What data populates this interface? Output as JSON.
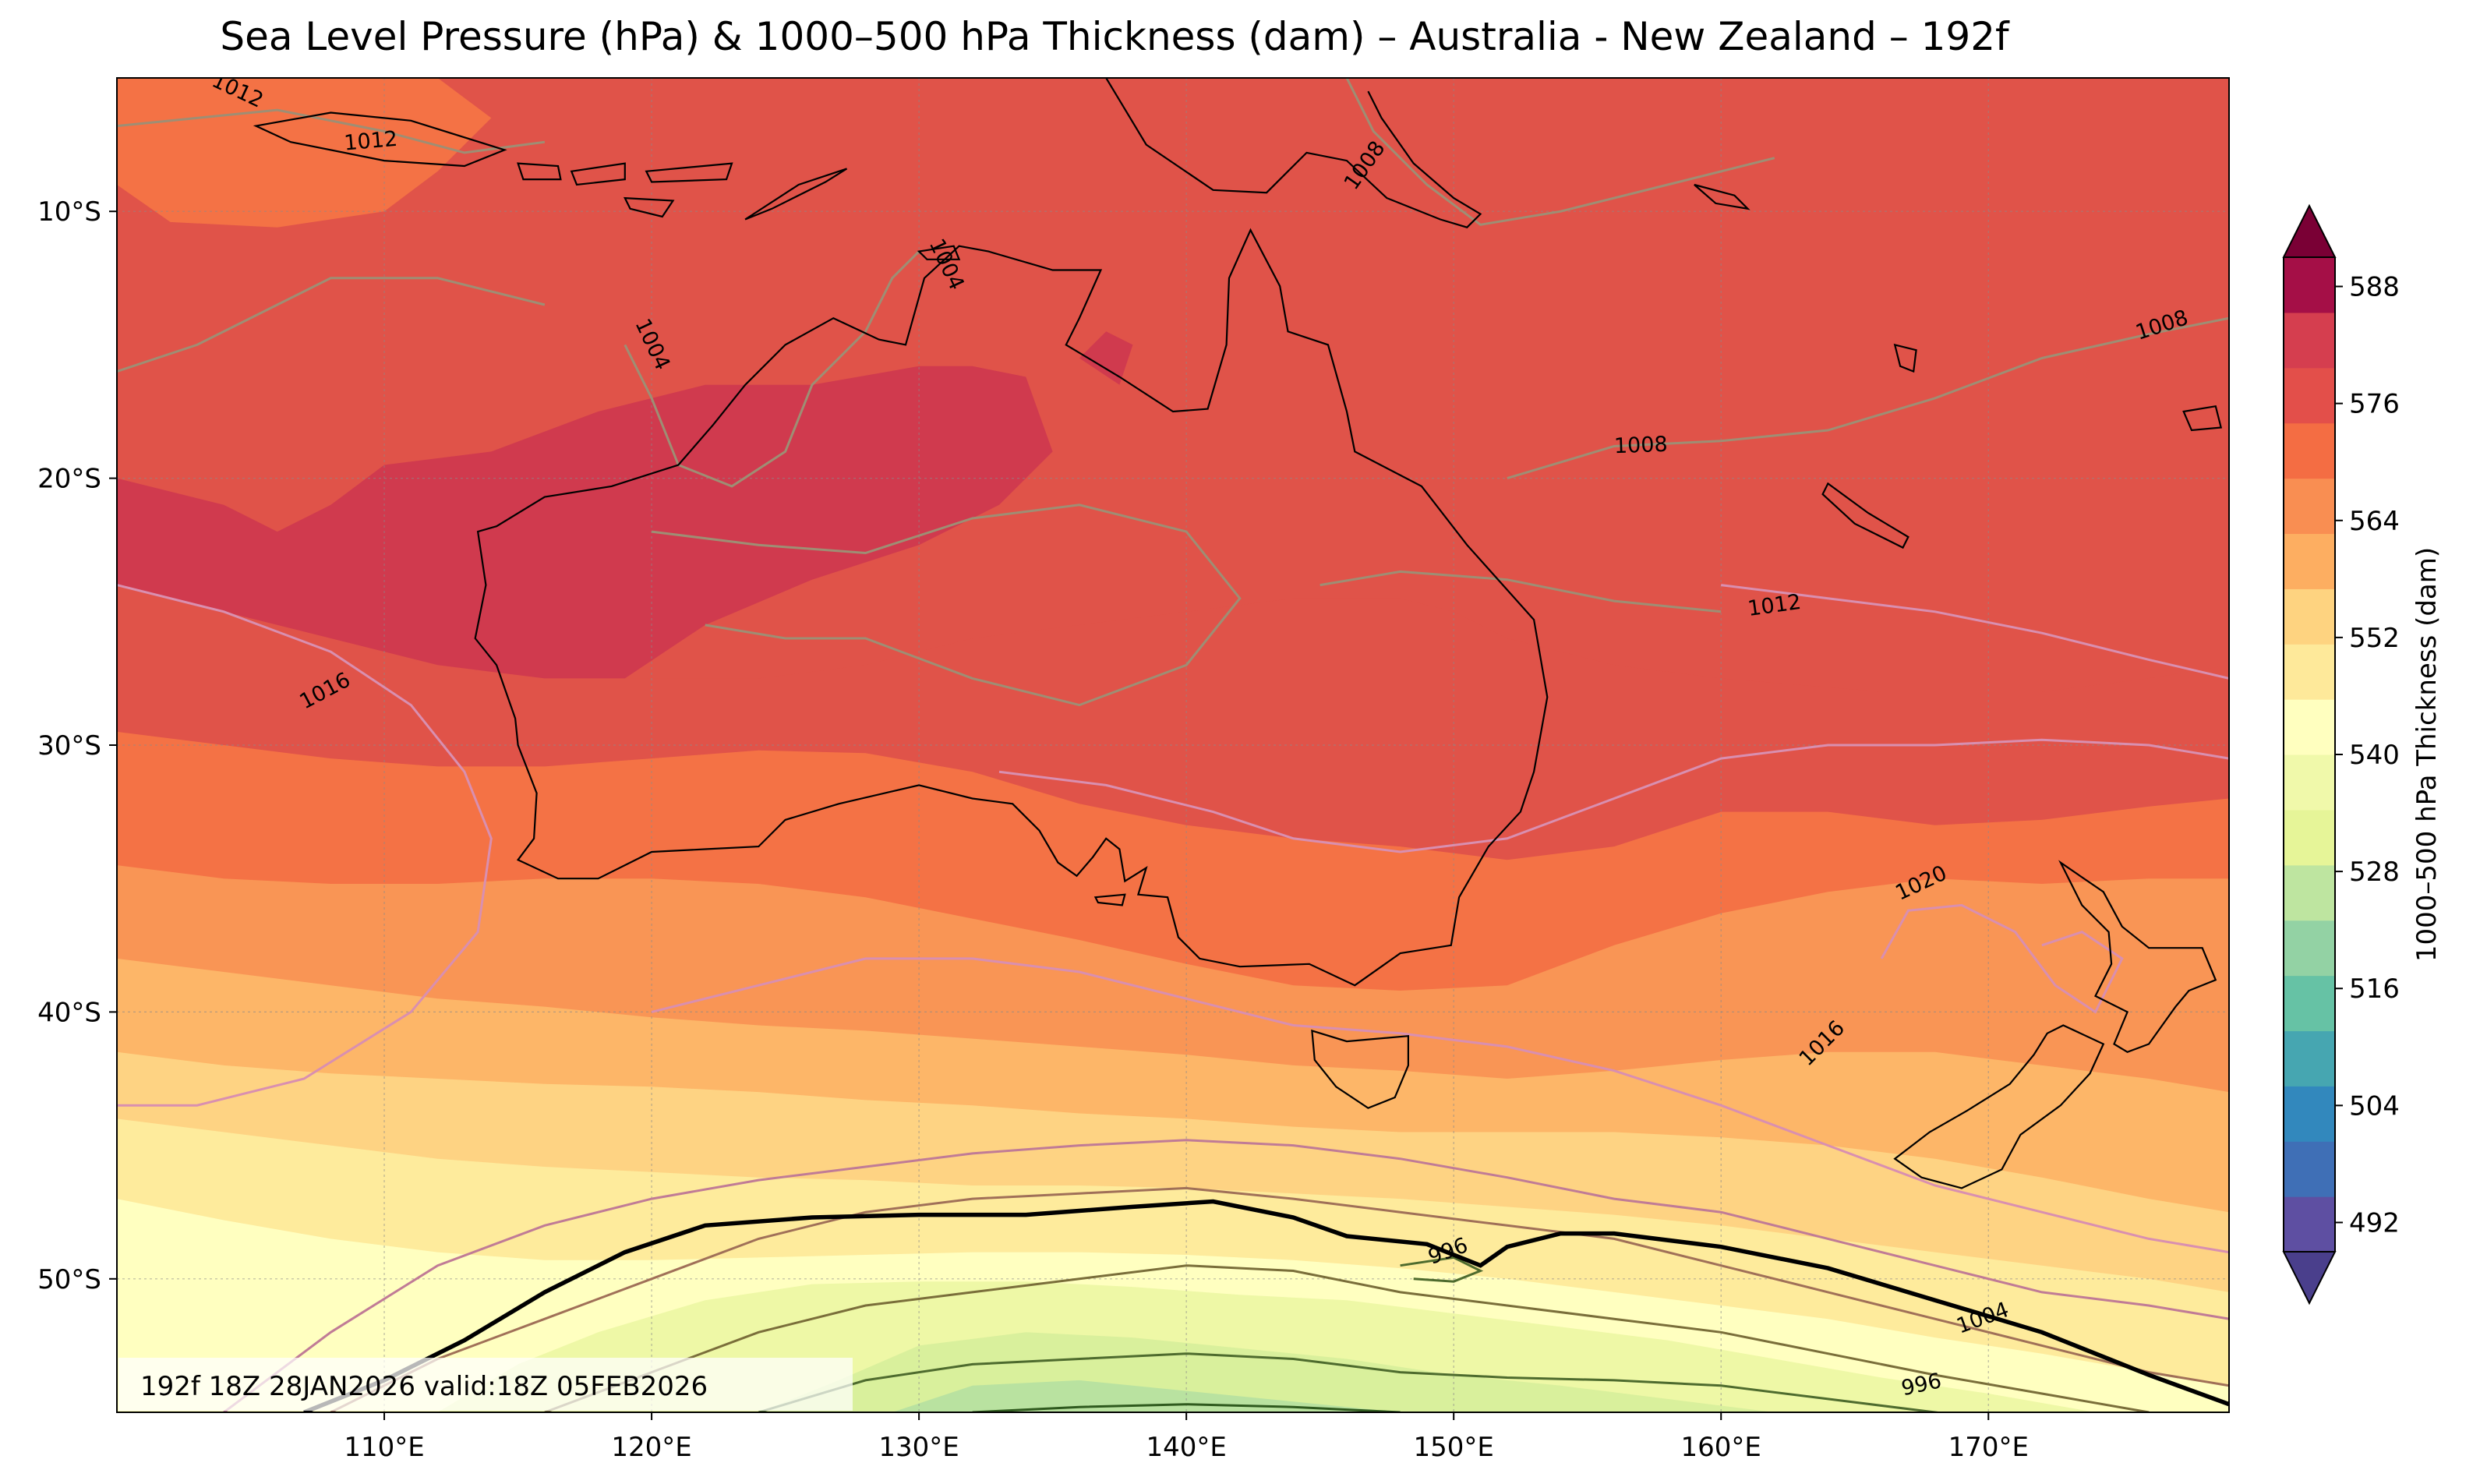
{
  "title": "Sea Level Pressure (hPa) & 1000–500 hPa Thickness (dam) – Australia - New Zealand – 192f",
  "map": {
    "lon_range": [
      100,
      179
    ],
    "lat_range": [
      -55,
      -5
    ],
    "lon_ticks": [
      {
        "value": 110,
        "label": "110°E"
      },
      {
        "value": 120,
        "label": "120°E"
      },
      {
        "value": 130,
        "label": "130°E"
      },
      {
        "value": 140,
        "label": "140°E"
      },
      {
        "value": 150,
        "label": "150°E"
      },
      {
        "value": 160,
        "label": "160°E"
      },
      {
        "value": 170,
        "label": "170°E"
      }
    ],
    "lat_ticks": [
      {
        "value": -10,
        "label": "10°S"
      },
      {
        "value": -20,
        "label": "20°S"
      },
      {
        "value": -30,
        "label": "30°S"
      },
      {
        "value": -40,
        "label": "40°S"
      },
      {
        "value": -50,
        "label": "50°S"
      }
    ],
    "gridlines": true,
    "stamp": "192f 18Z 28JAN2026 valid:18Z 05FEB2026"
  },
  "isobar_labels": [
    {
      "text": "1012",
      "lon": 104.5,
      "lat": -5.5,
      "angle": -25
    },
    {
      "text": "1012",
      "lon": 109.5,
      "lat": -7.4,
      "angle": 5
    },
    {
      "text": "1008",
      "lon": 146.7,
      "lat": -8.3,
      "angle": 55
    },
    {
      "text": "1004",
      "lon": 120.0,
      "lat": -15.0,
      "angle": -65
    },
    {
      "text": "1004",
      "lon": 131.0,
      "lat": -12.0,
      "angle": -65
    },
    {
      "text": "1008",
      "lon": 176.5,
      "lat": -14.3,
      "angle": 18
    },
    {
      "text": "1008",
      "lon": 157.0,
      "lat": -18.8,
      "angle": 2
    },
    {
      "text": "1012",
      "lon": 162.0,
      "lat": -24.8,
      "angle": 8
    },
    {
      "text": "1016",
      "lon": 107.8,
      "lat": -28.0,
      "angle": 28
    },
    {
      "text": "1020",
      "lon": 167.5,
      "lat": -35.2,
      "angle": 25
    },
    {
      "text": "1016",
      "lon": 163.8,
      "lat": -41.2,
      "angle": 45
    },
    {
      "text": "996",
      "lon": 149.8,
      "lat": -49.0,
      "angle": 20
    },
    {
      "text": "1004",
      "lon": 169.8,
      "lat": -51.5,
      "angle": 20
    },
    {
      "text": "996",
      "lon": 167.5,
      "lat": -54.0,
      "angle": 12
    }
  ],
  "colorbar": {
    "label": "1000–500 hPa Thickness (dam)",
    "levels": [
      492,
      498,
      504,
      510,
      516,
      522,
      528,
      534,
      540,
      546,
      552,
      558,
      564,
      570,
      576,
      582,
      588,
      594
    ],
    "tick_labels": [
      "492",
      "504",
      "516",
      "528",
      "540",
      "552",
      "564",
      "576",
      "588"
    ],
    "colors": [
      "#5e4fa2",
      "#3f6fb6",
      "#3288bd",
      "#46a6b1",
      "#66c2a5",
      "#93d2a4",
      "#bee5a0",
      "#e6f598",
      "#f0f9aa",
      "#ffffbf",
      "#fee99a",
      "#fed380",
      "#fdae61",
      "#f98e52",
      "#f46d43",
      "#e34f4a",
      "#d53e4f",
      "#a50f47"
    ],
    "extend": "both"
  },
  "thickness_bands": [
    {
      "min": 582,
      "max": 588,
      "color": "#d03a4e"
    },
    {
      "min": 576,
      "max": 582,
      "color": "#e05349"
    },
    {
      "min": 570,
      "max": 576,
      "color": "#f47245"
    },
    {
      "min": 564,
      "max": 570,
      "color": "#f99555"
    },
    {
      "min": 558,
      "max": 564,
      "color": "#fdb668"
    },
    {
      "min": 552,
      "max": 558,
      "color": "#fed383"
    },
    {
      "min": 546,
      "max": 552,
      "color": "#feeb9c"
    },
    {
      "min": 540,
      "max": 546,
      "color": "#ffffc0"
    },
    {
      "min": 534,
      "max": 540,
      "color": "#eef8a6"
    },
    {
      "min": 528,
      "max": 534,
      "color": "#d9f09c"
    },
    {
      "min": 522,
      "max": 528,
      "color": "#b9e2a0"
    }
  ],
  "colors": {
    "isobar_warm": "#d98fb0",
    "isobar_mid": "#9e8e74",
    "isobar_cold": "#4e6b2e",
    "thickness_540": "#000000",
    "coastline": "#000000"
  }
}
